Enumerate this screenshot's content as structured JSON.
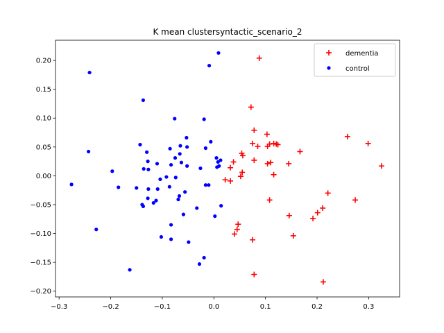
{
  "chart_data": {
    "type": "scatter",
    "title": "K mean clustersyntactic_scenario_2",
    "xlabel": "",
    "ylabel": "",
    "xlim": [
      -0.307,
      0.36
    ],
    "ylim": [
      -0.21,
      0.235
    ],
    "xticks": [
      -0.3,
      -0.2,
      -0.1,
      0.0,
      0.1,
      0.2,
      0.3
    ],
    "xtick_labels": [
      "−0.3",
      "−0.2",
      "−0.1",
      "0.0",
      "0.1",
      "0.2",
      "0.3"
    ],
    "yticks": [
      -0.2,
      -0.15,
      -0.1,
      -0.05,
      0.0,
      0.05,
      0.1,
      0.15,
      0.2
    ],
    "ytick_labels": [
      "−0.20",
      "−0.15",
      "−0.10",
      "−0.05",
      "0.00",
      "0.05",
      "0.10",
      "0.15",
      "0.20"
    ],
    "grid": false,
    "legend_position": "top-right",
    "series": [
      {
        "name": "dementia",
        "marker": "plus",
        "color": "#ff0000",
        "points": [
          [
            0.088,
            0.204
          ],
          [
            0.072,
            0.119
          ],
          [
            0.078,
            0.079
          ],
          [
            0.103,
            0.072
          ],
          [
            0.259,
            0.068
          ],
          [
            0.299,
            0.056
          ],
          [
            0.075,
            0.056
          ],
          [
            0.085,
            0.051
          ],
          [
            0.104,
            0.051
          ],
          [
            0.108,
            0.055
          ],
          [
            0.116,
            0.056
          ],
          [
            0.121,
            0.055
          ],
          [
            0.124,
            0.054
          ],
          [
            0.167,
            0.042
          ],
          [
            0.054,
            0.039
          ],
          [
            0.056,
            0.035
          ],
          [
            0.078,
            0.027
          ],
          [
            0.038,
            0.024
          ],
          [
            0.104,
            0.021
          ],
          [
            0.11,
            0.023
          ],
          [
            0.145,
            0.021
          ],
          [
            0.325,
            0.017
          ],
          [
            0.032,
            0.014
          ],
          [
            0.055,
            0.006
          ],
          [
            0.116,
            0.002
          ],
          [
            0.052,
            -0.001
          ],
          [
            0.022,
            -0.007
          ],
          [
            0.032,
            -0.009
          ],
          [
            0.221,
            -0.03
          ],
          [
            0.108,
            -0.042
          ],
          [
            0.274,
            -0.042
          ],
          [
            0.211,
            -0.056
          ],
          [
            0.201,
            -0.064
          ],
          [
            0.146,
            -0.069
          ],
          [
            0.192,
            -0.074
          ],
          [
            0.047,
            -0.084
          ],
          [
            0.045,
            -0.093
          ],
          [
            0.04,
            -0.101
          ],
          [
            0.154,
            -0.104
          ],
          [
            0.075,
            -0.111
          ],
          [
            0.078,
            -0.171
          ],
          [
            0.212,
            -0.184
          ]
        ]
      },
      {
        "name": "control",
        "marker": "dot",
        "color": "#0000ff",
        "points": [
          [
            0.009,
            0.213
          ],
          [
            -0.009,
            0.191
          ],
          [
            -0.241,
            0.179
          ],
          [
            -0.137,
            0.131
          ],
          [
            -0.076,
            0.099
          ],
          [
            -0.019,
            0.098
          ],
          [
            -0.006,
            0.059
          ],
          [
            -0.053,
            0.066
          ],
          [
            -0.143,
            0.054
          ],
          [
            -0.065,
            0.052
          ],
          [
            -0.052,
            0.05
          ],
          [
            -0.085,
            0.047
          ],
          [
            -0.13,
            0.041
          ],
          [
            -0.016,
            0.048
          ],
          [
            -0.243,
            0.042
          ],
          [
            -0.066,
            0.038
          ],
          [
            -0.075,
            0.031
          ],
          [
            0.005,
            0.031
          ],
          [
            0.013,
            0.027
          ],
          [
            0.008,
            0.024
          ],
          [
            -0.128,
            0.025
          ],
          [
            -0.11,
            0.021
          ],
          [
            -0.063,
            0.023
          ],
          [
            -0.083,
            0.019
          ],
          [
            -0.136,
            0.012
          ],
          [
            -0.127,
            0.011
          ],
          [
            -0.026,
            0.013
          ],
          [
            0.006,
            0.015
          ],
          [
            0.01,
            0.017
          ],
          [
            -0.052,
            0.017
          ],
          [
            -0.197,
            0.008
          ],
          [
            -0.092,
            -0.002
          ],
          [
            -0.074,
            -0.003
          ],
          [
            -0.104,
            -0.006
          ],
          [
            -0.016,
            -0.016
          ],
          [
            -0.01,
            -0.016
          ],
          [
            -0.086,
            -0.019
          ],
          [
            -0.15,
            -0.021
          ],
          [
            -0.185,
            -0.02
          ],
          [
            -0.127,
            -0.023
          ],
          [
            -0.109,
            -0.023
          ],
          [
            -0.276,
            -0.015
          ],
          [
            -0.056,
            -0.028
          ],
          [
            -0.067,
            -0.035
          ],
          [
            -0.069,
            -0.041
          ],
          [
            -0.128,
            -0.039
          ],
          [
            -0.112,
            -0.043
          ],
          [
            -0.117,
            -0.047
          ],
          [
            -0.139,
            -0.05
          ],
          [
            -0.137,
            -0.053
          ],
          [
            -0.033,
            -0.056
          ],
          [
            0.014,
            -0.052
          ],
          [
            -0.059,
            -0.067
          ],
          [
            0.002,
            -0.07
          ],
          [
            -0.083,
            -0.085
          ],
          [
            -0.228,
            -0.093
          ],
          [
            -0.102,
            -0.106
          ],
          [
            -0.083,
            -0.11
          ],
          [
            -0.049,
            -0.115
          ],
          [
            -0.019,
            -0.142
          ],
          [
            -0.028,
            -0.153
          ],
          [
            -0.163,
            -0.163
          ]
        ]
      }
    ]
  }
}
